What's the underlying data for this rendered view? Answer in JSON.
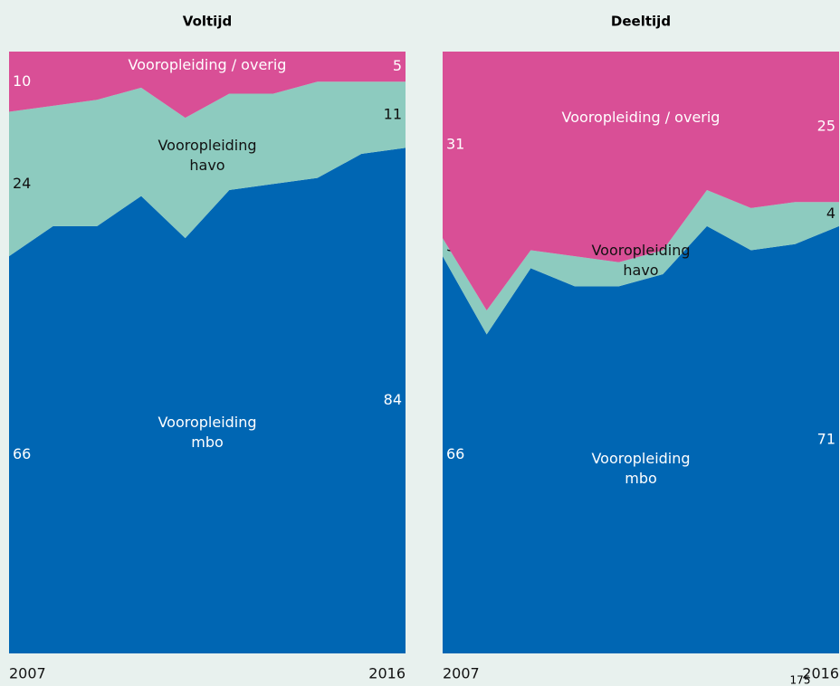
{
  "chart_data": [
    {
      "type": "stacked_area",
      "title": "Voltijd",
      "categories": [
        "2007",
        null,
        null,
        null,
        null,
        null,
        null,
        null,
        null,
        "2016"
      ],
      "ylim": [
        0,
        100
      ],
      "series": [
        {
          "name": "Vooropleiding mbo",
          "color": "#0066b3",
          "values": [
            66,
            71,
            71,
            76,
            69,
            77,
            78,
            79,
            83,
            84
          ]
        },
        {
          "name": "Vooropleiding havo",
          "color": "#8dcbbf",
          "values": [
            24,
            20,
            21,
            18,
            20,
            16,
            15,
            16,
            12,
            11
          ]
        },
        {
          "name": "Vooropleiding / overig",
          "color": "#d94f96",
          "values": [
            10,
            9,
            8,
            6,
            11,
            7,
            7,
            5,
            5,
            5
          ]
        }
      ]
    },
    {
      "type": "stacked_area",
      "title": "Deeltijd",
      "categories": [
        "2007",
        null,
        null,
        null,
        null,
        null,
        null,
        null,
        null,
        "2016"
      ],
      "ylim": [
        0,
        100
      ],
      "series": [
        {
          "name": "Vooropleiding mbo",
          "color": "#0066b3",
          "values": [
            66,
            53,
            64,
            61,
            61,
            63,
            71,
            67,
            68,
            71
          ]
        },
        {
          "name": "Vooropleiding havo",
          "color": "#8dcbbf",
          "values": [
            3,
            4,
            3,
            5,
            4,
            4,
            6,
            7,
            7,
            4
          ]
        },
        {
          "name": "Vooropleiding / overig",
          "color": "#d94f96",
          "values": [
            31,
            43,
            33,
            34,
            35,
            33,
            23,
            26,
            25,
            25
          ]
        }
      ]
    }
  ],
  "page_number": "175"
}
